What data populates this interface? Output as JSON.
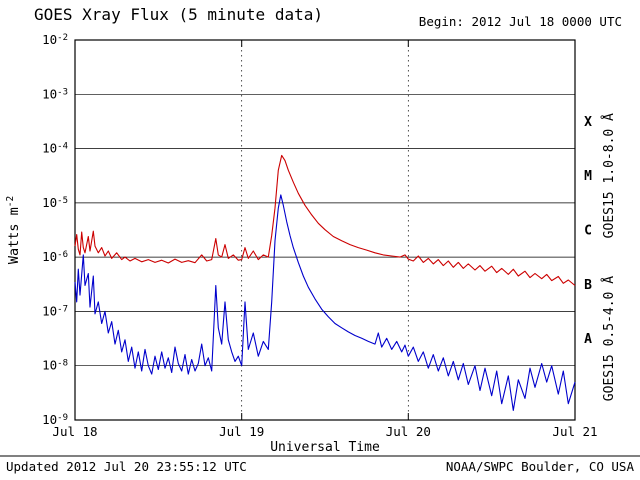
{
  "header": {
    "title": "GOES Xray Flux (5 minute data)",
    "begin_label": "Begin: 2012 Jul 18 0000 UTC"
  },
  "footer": {
    "updated": "Updated 2012 Jul 20 23:55:12 UTC",
    "source": "NOAA/SWPC Boulder, CO USA"
  },
  "colors": {
    "long_channel": "#cc0000",
    "short_channel": "#0000cc",
    "axis": "#000000",
    "background": "#ffffff"
  },
  "chart_data": {
    "type": "line",
    "title": "GOES Xray Flux (5 minute data)",
    "xlabel": "Universal Time",
    "ylabel": "Watts m^-2",
    "x_axis_scale": "time-days",
    "y_axis_scale": "log10",
    "grid": "horizontal-solid-decades, vertical-dotted-day-boundaries",
    "x_range_days": [
      0,
      3
    ],
    "x_tick_days": [
      0,
      1,
      2,
      3
    ],
    "x_ticks": [
      "Jul 18",
      "Jul 19",
      "Jul 20",
      "Jul 21"
    ],
    "y_log_range": [
      -9,
      -2
    ],
    "y_ticks": [
      -2,
      -3,
      -4,
      -5,
      -6,
      -7,
      -8,
      -9
    ],
    "y_tick_labels": [
      "10^-2",
      "10^-3",
      "10^-4",
      "10^-5",
      "10^-6",
      "10^-7",
      "10^-8",
      "10^-9"
    ],
    "flare_classes": [
      {
        "label": "X",
        "mid_exp": -3.5
      },
      {
        "label": "M",
        "mid_exp": -4.5
      },
      {
        "label": "C",
        "mid_exp": -5.5
      },
      {
        "label": "B",
        "mid_exp": -6.5
      },
      {
        "label": "A",
        "mid_exp": -7.5
      }
    ],
    "series": [
      {
        "key": "long",
        "name": "GOES15 1.0-8.0 A",
        "axis_label": "GOES15 1.0-8.0 Å",
        "color": "#cc0000",
        "label_center_exp": -4.5,
        "points": [
          [
            0.0,
            1.6e-06
          ],
          [
            0.01,
            2.6e-06
          ],
          [
            0.02,
            1.4e-06
          ],
          [
            0.03,
            1.1e-06
          ],
          [
            0.04,
            2.9e-06
          ],
          [
            0.05,
            1.5e-06
          ],
          [
            0.06,
            1.2e-06
          ],
          [
            0.08,
            2.4e-06
          ],
          [
            0.09,
            1.3e-06
          ],
          [
            0.11,
            3e-06
          ],
          [
            0.12,
            1.6e-06
          ],
          [
            0.14,
            1.2e-06
          ],
          [
            0.16,
            1.5e-06
          ],
          [
            0.18,
            1.05e-06
          ],
          [
            0.2,
            1.3e-06
          ],
          [
            0.22,
            9.5e-07
          ],
          [
            0.25,
            1.2e-06
          ],
          [
            0.28,
            9e-07
          ],
          [
            0.3,
            1e-06
          ],
          [
            0.33,
            8.5e-07
          ],
          [
            0.36,
            9.5e-07
          ],
          [
            0.4,
            8.2e-07
          ],
          [
            0.44,
            9e-07
          ],
          [
            0.48,
            8e-07
          ],
          [
            0.52,
            8.8e-07
          ],
          [
            0.56,
            7.8e-07
          ],
          [
            0.6,
            9.2e-07
          ],
          [
            0.64,
            8e-07
          ],
          [
            0.68,
            8.6e-07
          ],
          [
            0.72,
            7.9e-07
          ],
          [
            0.76,
            1.1e-06
          ],
          [
            0.79,
            8.5e-07
          ],
          [
            0.82,
            9e-07
          ],
          [
            0.845,
            2.2e-06
          ],
          [
            0.86,
            1.1e-06
          ],
          [
            0.88,
            1e-06
          ],
          [
            0.9,
            1.7e-06
          ],
          [
            0.92,
            9.5e-07
          ],
          [
            0.95,
            1.1e-06
          ],
          [
            0.98,
            8.8e-07
          ],
          [
            1.0,
            9e-07
          ],
          [
            1.02,
            1.5e-06
          ],
          [
            1.04,
            9.5e-07
          ],
          [
            1.07,
            1.3e-06
          ],
          [
            1.1,
            9e-07
          ],
          [
            1.13,
            1.1e-06
          ],
          [
            1.16,
            1e-06
          ],
          [
            1.18,
            2.5e-06
          ],
          [
            1.2,
            8e-06
          ],
          [
            1.22,
            4e-05
          ],
          [
            1.24,
            7.5e-05
          ],
          [
            1.26,
            6e-05
          ],
          [
            1.28,
            4e-05
          ],
          [
            1.31,
            2.4e-05
          ],
          [
            1.34,
            1.5e-05
          ],
          [
            1.38,
            9e-06
          ],
          [
            1.42,
            6e-06
          ],
          [
            1.46,
            4.2e-06
          ],
          [
            1.5,
            3.2e-06
          ],
          [
            1.55,
            2.4e-06
          ],
          [
            1.6,
            2e-06
          ],
          [
            1.65,
            1.7e-06
          ],
          [
            1.7,
            1.5e-06
          ],
          [
            1.75,
            1.35e-06
          ],
          [
            1.8,
            1.2e-06
          ],
          [
            1.85,
            1.1e-06
          ],
          [
            1.9,
            1.05e-06
          ],
          [
            1.95,
            1e-06
          ],
          [
            1.98,
            1.1e-06
          ],
          [
            2.0,
            9.2e-07
          ],
          [
            2.03,
            8.5e-07
          ],
          [
            2.06,
            1.05e-06
          ],
          [
            2.09,
            8e-07
          ],
          [
            2.12,
            9.5e-07
          ],
          [
            2.15,
            7.5e-07
          ],
          [
            2.18,
            9e-07
          ],
          [
            2.21,
            7e-07
          ],
          [
            2.24,
            8.5e-07
          ],
          [
            2.27,
            6.5e-07
          ],
          [
            2.3,
            8e-07
          ],
          [
            2.33,
            6.2e-07
          ],
          [
            2.36,
            7.5e-07
          ],
          [
            2.4,
            5.8e-07
          ],
          [
            2.43,
            7e-07
          ],
          [
            2.46,
            5.5e-07
          ],
          [
            2.5,
            6.8e-07
          ],
          [
            2.53,
            5.2e-07
          ],
          [
            2.56,
            6.2e-07
          ],
          [
            2.6,
            4.8e-07
          ],
          [
            2.63,
            6e-07
          ],
          [
            2.66,
            4.5e-07
          ],
          [
            2.7,
            5.5e-07
          ],
          [
            2.73,
            4.2e-07
          ],
          [
            2.76,
            5e-07
          ],
          [
            2.8,
            4e-07
          ],
          [
            2.83,
            4.8e-07
          ],
          [
            2.86,
            3.7e-07
          ],
          [
            2.9,
            4.4e-07
          ],
          [
            2.93,
            3.3e-07
          ],
          [
            2.96,
            3.8e-07
          ],
          [
            3.0,
            3e-07
          ]
        ]
      },
      {
        "key": "short",
        "name": "GOES15 0.5-4.0 A",
        "axis_label": "GOES15 0.5-4.0 Å",
        "color": "#0000cc",
        "label_center_exp": -7.5,
        "points": [
          [
            0.0,
            3.5e-07
          ],
          [
            0.01,
            1.5e-07
          ],
          [
            0.02,
            6e-07
          ],
          [
            0.03,
            2e-07
          ],
          [
            0.05,
            1.1e-06
          ],
          [
            0.06,
            3e-07
          ],
          [
            0.08,
            5e-07
          ],
          [
            0.09,
            1.2e-07
          ],
          [
            0.11,
            4.5e-07
          ],
          [
            0.12,
            9e-08
          ],
          [
            0.14,
            1.5e-07
          ],
          [
            0.16,
            6e-08
          ],
          [
            0.18,
            1e-07
          ],
          [
            0.2,
            4e-08
          ],
          [
            0.22,
            6.5e-08
          ],
          [
            0.24,
            2.5e-08
          ],
          [
            0.26,
            4.5e-08
          ],
          [
            0.28,
            1.8e-08
          ],
          [
            0.3,
            3e-08
          ],
          [
            0.32,
            1.2e-08
          ],
          [
            0.34,
            2.2e-08
          ],
          [
            0.36,
            9e-09
          ],
          [
            0.38,
            1.8e-08
          ],
          [
            0.4,
            8e-09
          ],
          [
            0.42,
            2e-08
          ],
          [
            0.44,
            1e-08
          ],
          [
            0.46,
            7e-09
          ],
          [
            0.48,
            1.5e-08
          ],
          [
            0.5,
            8.5e-09
          ],
          [
            0.52,
            1.8e-08
          ],
          [
            0.54,
            9e-09
          ],
          [
            0.56,
            1.4e-08
          ],
          [
            0.58,
            7.5e-09
          ],
          [
            0.6,
            2.2e-08
          ],
          [
            0.62,
            1.1e-08
          ],
          [
            0.64,
            8e-09
          ],
          [
            0.66,
            1.6e-08
          ],
          [
            0.68,
            7e-09
          ],
          [
            0.7,
            1.3e-08
          ],
          [
            0.72,
            8e-09
          ],
          [
            0.74,
            1.1e-08
          ],
          [
            0.76,
            2.5e-08
          ],
          [
            0.78,
            1e-08
          ],
          [
            0.8,
            1.4e-08
          ],
          [
            0.82,
            8e-09
          ],
          [
            0.845,
            3e-07
          ],
          [
            0.86,
            5e-08
          ],
          [
            0.88,
            2.5e-08
          ],
          [
            0.9,
            1.5e-07
          ],
          [
            0.92,
            3e-08
          ],
          [
            0.94,
            1.8e-08
          ],
          [
            0.96,
            1.2e-08
          ],
          [
            0.98,
            1.5e-08
          ],
          [
            1.0,
            1e-08
          ],
          [
            1.02,
            1.5e-07
          ],
          [
            1.04,
            2e-08
          ],
          [
            1.07,
            4e-08
          ],
          [
            1.1,
            1.5e-08
          ],
          [
            1.13,
            2.8e-08
          ],
          [
            1.16,
            2e-08
          ],
          [
            1.18,
            1.5e-07
          ],
          [
            1.2,
            2e-06
          ],
          [
            1.22,
            8e-06
          ],
          [
            1.235,
            1.4e-05
          ],
          [
            1.25,
            9e-06
          ],
          [
            1.27,
            4.5e-06
          ],
          [
            1.29,
            2.5e-06
          ],
          [
            1.31,
            1.5e-06
          ],
          [
            1.34,
            8e-07
          ],
          [
            1.37,
            4.5e-07
          ],
          [
            1.4,
            2.8e-07
          ],
          [
            1.44,
            1.7e-07
          ],
          [
            1.48,
            1.1e-07
          ],
          [
            1.52,
            8e-08
          ],
          [
            1.56,
            6e-08
          ],
          [
            1.6,
            5e-08
          ],
          [
            1.64,
            4.2e-08
          ],
          [
            1.68,
            3.6e-08
          ],
          [
            1.72,
            3.2e-08
          ],
          [
            1.76,
            2.8e-08
          ],
          [
            1.8,
            2.5e-08
          ],
          [
            1.82,
            4e-08
          ],
          [
            1.84,
            2.2e-08
          ],
          [
            1.87,
            3.2e-08
          ],
          [
            1.9,
            2e-08
          ],
          [
            1.93,
            2.8e-08
          ],
          [
            1.96,
            1.8e-08
          ],
          [
            1.98,
            2.4e-08
          ],
          [
            2.0,
            1.5e-08
          ],
          [
            2.03,
            2.2e-08
          ],
          [
            2.06,
            1.2e-08
          ],
          [
            2.09,
            1.8e-08
          ],
          [
            2.12,
            9e-09
          ],
          [
            2.15,
            1.6e-08
          ],
          [
            2.18,
            8e-09
          ],
          [
            2.21,
            1.4e-08
          ],
          [
            2.24,
            6.5e-09
          ],
          [
            2.27,
            1.2e-08
          ],
          [
            2.3,
            5.5e-09
          ],
          [
            2.33,
            1.1e-08
          ],
          [
            2.36,
            4.5e-09
          ],
          [
            2.4,
            1e-08
          ],
          [
            2.43,
            3.5e-09
          ],
          [
            2.46,
            9e-09
          ],
          [
            2.5,
            2.8e-09
          ],
          [
            2.53,
            8e-09
          ],
          [
            2.56,
            2e-09
          ],
          [
            2.6,
            6.5e-09
          ],
          [
            2.63,
            1.5e-09
          ],
          [
            2.66,
            5.5e-09
          ],
          [
            2.7,
            2.5e-09
          ],
          [
            2.73,
            9e-09
          ],
          [
            2.76,
            4e-09
          ],
          [
            2.8,
            1.1e-08
          ],
          [
            2.83,
            5e-09
          ],
          [
            2.86,
            1e-08
          ],
          [
            2.9,
            3e-09
          ],
          [
            2.93,
            8e-09
          ],
          [
            2.96,
            2e-09
          ],
          [
            3.0,
            5e-09
          ]
        ]
      }
    ]
  }
}
